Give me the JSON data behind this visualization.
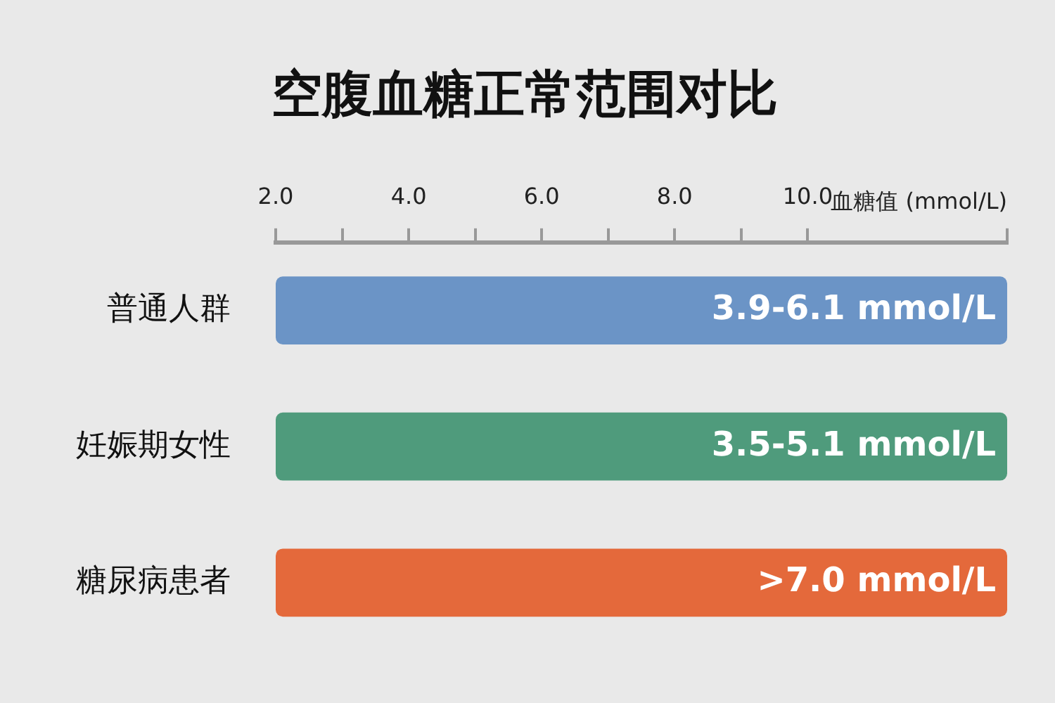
{
  "chart_data": {
    "type": "bar",
    "orientation": "horizontal",
    "title": "空腹血糖正常范围对比",
    "xlabel": "血糖值 (mmol/L)",
    "categories": [
      "普通人群",
      "妊娠期女性",
      "糖尿病患者"
    ],
    "base": [
      2,
      2,
      2
    ],
    "values": [
      11,
      11,
      11
    ],
    "colors": [
      "#6b94c6",
      "#4f9b7c",
      "#e4693b"
    ],
    "value_labels": [
      "3.9-6.1 mmol/L",
      "3.5-5.1 mmol/L",
      ">7.0 mmol/L"
    ],
    "xlim": [
      2,
      13
    ],
    "xticks": [
      {
        "value": 2,
        "label": "2.0"
      },
      {
        "value": 3,
        "label": null
      },
      {
        "value": 4,
        "label": "4.0"
      },
      {
        "value": 5,
        "label": null
      },
      {
        "value": 6,
        "label": "6.0"
      },
      {
        "value": 7,
        "label": null
      },
      {
        "value": 8,
        "label": "8.0"
      },
      {
        "value": 9,
        "label": null
      },
      {
        "value": 10,
        "label": "10.0"
      },
      {
        "value": 13,
        "label": null
      }
    ],
    "grid": false,
    "legend": false
  }
}
